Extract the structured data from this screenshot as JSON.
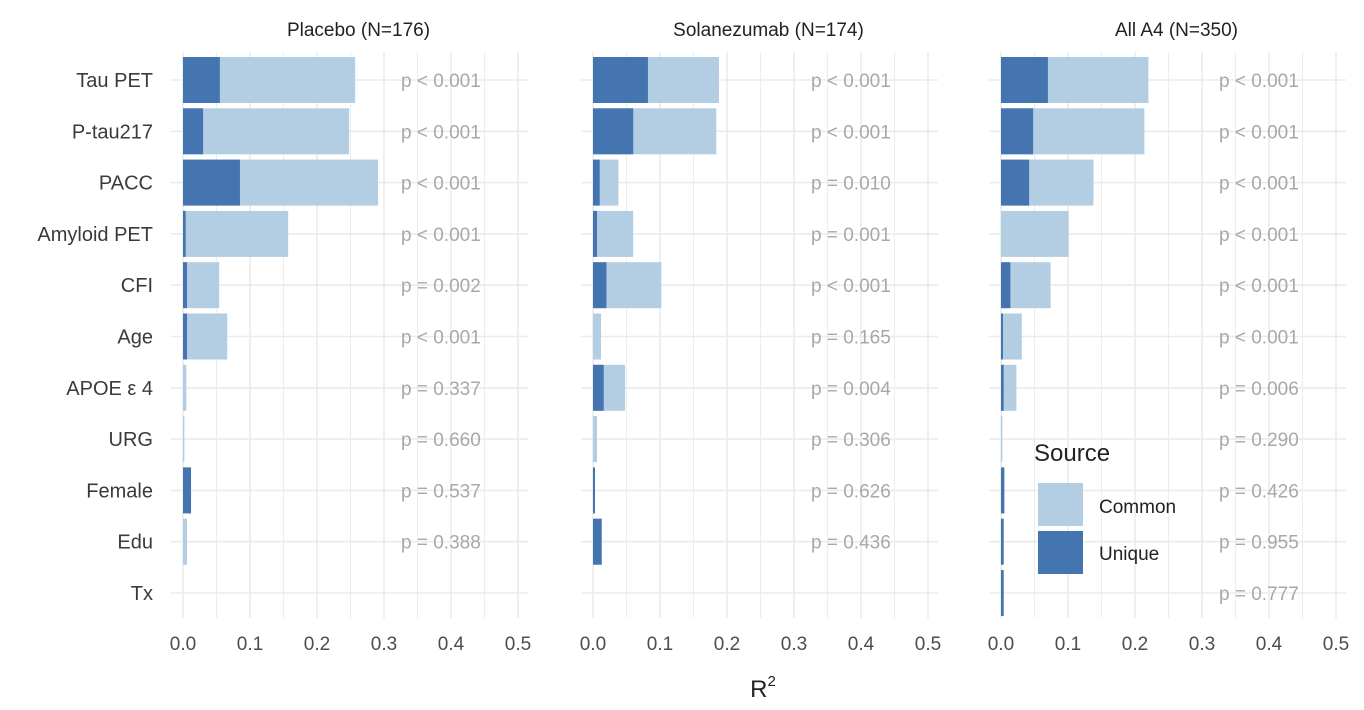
{
  "chart_data": {
    "type": "bar",
    "xlabel": "R",
    "xlabel_superscript": "2",
    "xlim": [
      0,
      0.5
    ],
    "xticks": [
      "0.0",
      "0.1",
      "0.2",
      "0.3",
      "0.4",
      "0.5"
    ],
    "categories": [
      "Tau PET",
      "P-tau217",
      "PACC",
      "Amyloid PET",
      "CFI",
      "Age",
      "APOE ε 4",
      "URG",
      "Female",
      "Edu",
      "Tx"
    ],
    "legend": {
      "title": "Source",
      "position": "bottom-right",
      "entries": [
        {
          "name": "Common",
          "color": "#b3cde3"
        },
        {
          "name": "Unique",
          "color": "#4575b0"
        }
      ]
    },
    "colors": {
      "common": "#b3cde3",
      "unique": "#4575b0",
      "grid": "#ebebeb"
    },
    "panels": [
      {
        "title": "Placebo (N=176)",
        "unique": [
          0.055,
          0.03,
          0.085,
          0.004,
          0.006,
          0.006,
          0.0,
          0.0,
          0.012,
          0.0,
          null
        ],
        "total": [
          0.257,
          0.248,
          0.291,
          0.157,
          0.054,
          0.066,
          0.005,
          0.002,
          0.012,
          0.006,
          null
        ],
        "p_values": [
          "p < 0.001",
          "p < 0.001",
          "p < 0.001",
          "p < 0.001",
          "p = 0.002",
          "p < 0.001",
          "p = 0.337",
          "p = 0.660",
          "p = 0.537",
          "p = 0.388",
          ""
        ]
      },
      {
        "title": "Solanezumab (N=174)",
        "unique": [
          0.082,
          0.06,
          0.01,
          0.006,
          0.02,
          0.0,
          0.016,
          0.0,
          0.003,
          0.013,
          null
        ],
        "total": [
          0.188,
          0.184,
          0.038,
          0.06,
          0.102,
          0.012,
          0.048,
          0.006,
          0.003,
          0.013,
          null
        ],
        "p_values": [
          "p < 0.001",
          "p < 0.001",
          "p = 0.010",
          "p = 0.001",
          "p < 0.001",
          "p = 0.165",
          "p = 0.004",
          "p = 0.306",
          "p = 0.626",
          "p = 0.436",
          ""
        ]
      },
      {
        "title": "All A4 (N=350)",
        "unique": [
          0.07,
          0.048,
          0.042,
          0.0,
          0.014,
          0.003,
          0.004,
          0.0,
          0.005,
          0.004,
          0.004
        ],
        "total": [
          0.22,
          0.214,
          0.138,
          0.101,
          0.074,
          0.031,
          0.023,
          0.002,
          0.005,
          0.004,
          0.004
        ],
        "p_values": [
          "p < 0.001",
          "p < 0.001",
          "p < 0.001",
          "p < 0.001",
          "p < 0.001",
          "p < 0.001",
          "p = 0.006",
          "p = 0.290",
          "p = 0.426",
          "p = 0.955",
          "p = 0.777"
        ]
      }
    ]
  }
}
